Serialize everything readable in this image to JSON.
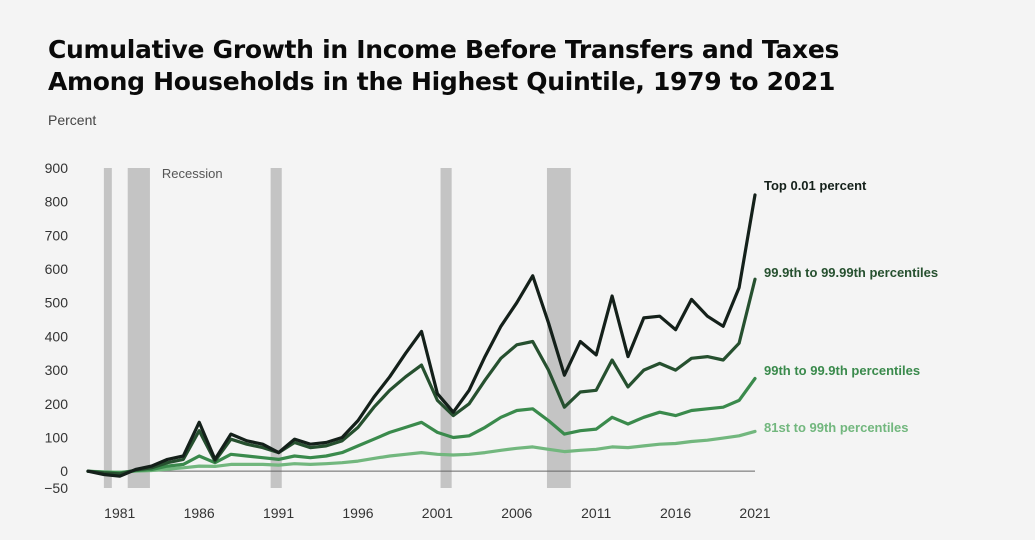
{
  "chart_data": {
    "type": "line",
    "title_lines": [
      "Cumulative Growth in Income Before Transfers and Taxes",
      "Among Households in the Highest Quintile, 1979 to 2021"
    ],
    "ylabel": "Percent",
    "xlabel": "",
    "xlim": [
      1979,
      2021
    ],
    "ylim": [
      -50,
      900
    ],
    "yticks": [
      -50,
      0,
      100,
      200,
      300,
      400,
      500,
      600,
      700,
      800,
      900
    ],
    "yticks_labels": [
      "−50",
      "0",
      "100",
      "200",
      "300",
      "400",
      "500",
      "600",
      "700",
      "800",
      "900"
    ],
    "xticks": [
      1981,
      1986,
      1991,
      1996,
      2001,
      2006,
      2011,
      2016,
      2021
    ],
    "xticks_labels": [
      "1981",
      "1986",
      "1991",
      "1996",
      "2001",
      "2006",
      "2011",
      "2016",
      "2021"
    ],
    "recession_label": "Recession",
    "recessions": [
      [
        1980.0,
        1980.5
      ],
      [
        1981.5,
        1982.9
      ],
      [
        1990.5,
        1991.2
      ],
      [
        2001.2,
        2001.9
      ],
      [
        2007.9,
        2009.4
      ]
    ],
    "x": [
      1979,
      1980,
      1981,
      1982,
      1983,
      1984,
      1985,
      1986,
      1987,
      1988,
      1989,
      1990,
      1991,
      1992,
      1993,
      1994,
      1995,
      1996,
      1997,
      1998,
      1999,
      2000,
      2001,
      2002,
      2003,
      2004,
      2005,
      2006,
      2007,
      2008,
      2009,
      2010,
      2011,
      2012,
      2013,
      2014,
      2015,
      2016,
      2017,
      2018,
      2019,
      2020,
      2021
    ],
    "series": [
      {
        "name": "Top 0.01 percent",
        "color": "#14201a",
        "values": [
          0,
          -10,
          -15,
          5,
          15,
          35,
          45,
          145,
          35,
          110,
          90,
          80,
          55,
          95,
          80,
          85,
          100,
          150,
          220,
          280,
          350,
          415,
          230,
          175,
          240,
          340,
          430,
          500,
          580,
          440,
          285,
          385,
          345,
          520,
          340,
          455,
          460,
          420,
          510,
          460,
          430,
          545,
          820
        ]
      },
      {
        "name": "99.9th to 99.99th percentiles",
        "color": "#26502f",
        "values": [
          0,
          -5,
          -8,
          3,
          10,
          25,
          35,
          120,
          30,
          95,
          80,
          70,
          55,
          85,
          70,
          75,
          90,
          130,
          190,
          240,
          280,
          315,
          210,
          165,
          200,
          270,
          335,
          375,
          385,
          300,
          190,
          235,
          240,
          330,
          250,
          300,
          320,
          300,
          335,
          340,
          330,
          380,
          570
        ]
      },
      {
        "name": "99th to 99.9th percentiles",
        "color": "#3a8a4c",
        "values": [
          0,
          -3,
          -5,
          2,
          5,
          15,
          20,
          45,
          25,
          50,
          45,
          40,
          35,
          45,
          40,
          45,
          55,
          75,
          95,
          115,
          130,
          145,
          115,
          100,
          105,
          130,
          160,
          180,
          185,
          150,
          110,
          120,
          125,
          160,
          140,
          160,
          175,
          165,
          180,
          185,
          190,
          210,
          275
        ]
      },
      {
        "name": "81st to 99th percentiles",
        "color": "#72b77e",
        "values": [
          0,
          -2,
          -3,
          0,
          2,
          6,
          10,
          15,
          14,
          20,
          20,
          20,
          18,
          22,
          20,
          22,
          25,
          30,
          38,
          45,
          50,
          55,
          50,
          48,
          50,
          55,
          62,
          68,
          72,
          65,
          58,
          62,
          65,
          72,
          70,
          75,
          80,
          82,
          88,
          92,
          98,
          105,
          118
        ]
      }
    ]
  }
}
